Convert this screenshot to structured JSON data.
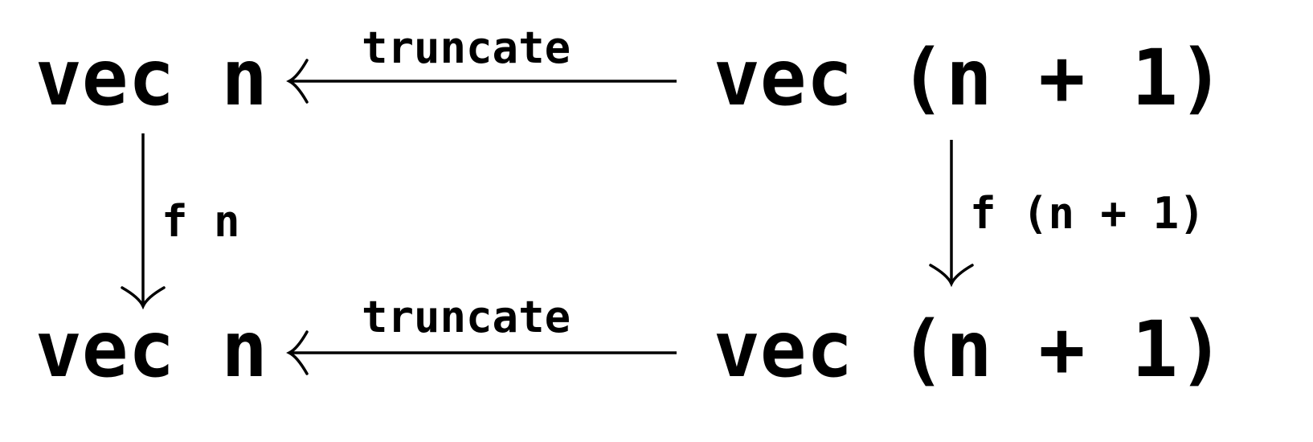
{
  "diagram": {
    "nodes": {
      "top_left": "vec n",
      "top_right": "vec (n + 1)",
      "bottom_left": "vec n",
      "bottom_right": "vec (n + 1)"
    },
    "edges": {
      "top": "truncate",
      "bottom": "truncate",
      "left": "f n",
      "right": "f (n + 1)"
    },
    "colors": {
      "ink": "#000000",
      "background": "#ffffff"
    }
  }
}
